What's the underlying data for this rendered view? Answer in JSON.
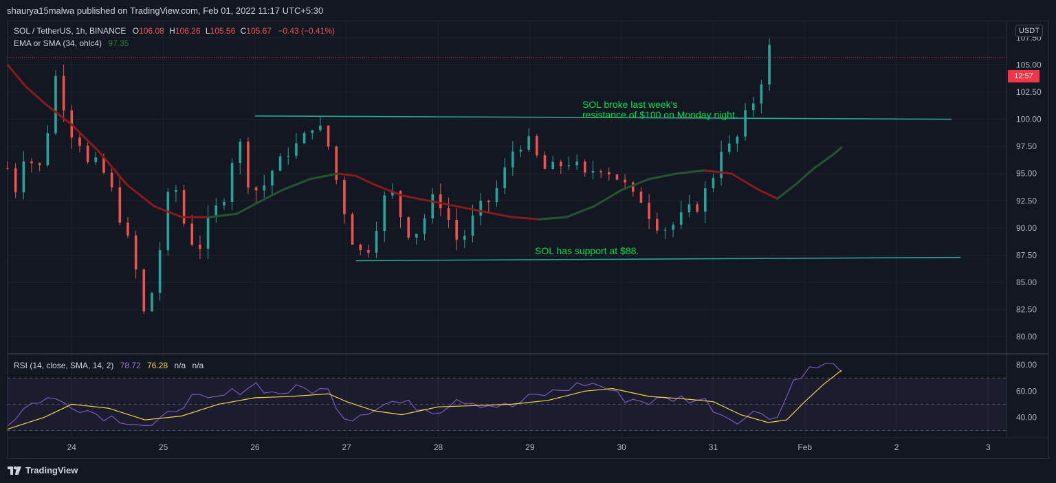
{
  "header": {
    "text": "shaurya15malwa published on TradingView.com, Feb 01, 2022 11:17 UTC+5:30"
  },
  "legend": {
    "symbol": "SOL / TetherUS, 1h, BINANCE",
    "o_label": "O",
    "o_val": "106.08",
    "h_label": "H",
    "h_val": "106.26",
    "l_label": "L",
    "l_val": "105.56",
    "c_label": "C",
    "c_val": "105.67",
    "change": "−0.43 (−0.41%)",
    "ema_label": "EMA or SMA (34, ohlc4)",
    "ema_val": "97.35",
    "rsi_label": "RSI (14, close, SMA, 14, 2)",
    "rsi_val": "78.72",
    "rsi_sma_val": "76.28",
    "rsi_na1": "n/a",
    "rsi_na2": "n/a"
  },
  "price_axis": {
    "currency": "USDT",
    "last_tag": "12:57"
  },
  "annotations": {
    "resistance": [
      "SOL broke last week's",
      "resistance of $100 on Monday night."
    ],
    "support": "SOL has support at $88."
  },
  "footer": {
    "brand": "TradingView"
  },
  "colors": {
    "up": "#26a69a",
    "down": "#ef5350",
    "ema_up": "#1e5631",
    "ema_down": "#8b1a1a",
    "rsi": "#7e57c2",
    "rsi_sma": "#f5d547",
    "level_line": "#26a69a",
    "annotation": "#00e04b"
  },
  "chart_data": [
    {
      "type": "candlestick",
      "ylim": [
        78.5,
        109
      ],
      "yticks": [
        "107.50",
        "105.00",
        "102.50",
        "100.00",
        "97.50",
        "95.00",
        "92.50",
        "90.00",
        "87.50",
        "85.00",
        "82.50",
        "80.00"
      ],
      "ytick_values": [
        107.5,
        105,
        102.5,
        100,
        97.5,
        95,
        92.5,
        90,
        87.5,
        85,
        82.5,
        80
      ],
      "xticks": [
        "24",
        "25",
        "26",
        "27",
        "28",
        "29",
        "30",
        "31",
        "Feb",
        "2",
        "3"
      ],
      "x_range_days": [
        -0.7,
        10.2
      ],
      "xtick_days": [
        0,
        1,
        2,
        3,
        4,
        5,
        6,
        7,
        8,
        9,
        10
      ],
      "close_path_days": [
        -0.7,
        -0.6,
        -0.5,
        -0.4,
        -0.3,
        -0.2,
        -0.1,
        0,
        0.1,
        0.2,
        0.3,
        0.4,
        0.5,
        0.6,
        0.7,
        0.8,
        0.9,
        1,
        1.1,
        1.2,
        1.3,
        1.4,
        1.5,
        1.6,
        1.7,
        1.8,
        1.9,
        2,
        2.1,
        2.2,
        2.3,
        2.4,
        2.5,
        2.6,
        2.7,
        2.8,
        2.9,
        3,
        3.1,
        3.2,
        3.3,
        3.4,
        3.5,
        3.6,
        3.7,
        3.8,
        3.9,
        4,
        4.1,
        4.2,
        4.3,
        4.4,
        4.5,
        4.6,
        4.7,
        4.8,
        4.9,
        5,
        5.1,
        5.2,
        5.3,
        5.4,
        5.5,
        5.6,
        5.7,
        5.8,
        5.9,
        6,
        6.1,
        6.2,
        6.3,
        6.4,
        6.5,
        6.6,
        6.7,
        6.8,
        6.9,
        7,
        7.1,
        7.2,
        7.3,
        7.4,
        7.5,
        7.6,
        7.7,
        7.8,
        7.9,
        8,
        8.1,
        8.2,
        8.3,
        8.4
      ],
      "close_path": [
        95.5,
        93.5,
        98,
        95,
        96,
        104.5,
        102,
        99,
        98,
        95,
        96,
        94,
        92,
        89,
        86,
        81.5,
        85,
        90,
        95,
        91,
        89,
        88.5,
        90.5,
        92,
        94,
        99,
        95,
        93.5,
        94,
        95.5,
        96,
        98,
        97,
        100,
        99,
        97.5,
        94,
        91,
        88,
        87.5,
        90,
        92.5,
        93,
        91,
        89.5,
        90,
        92,
        93,
        91,
        89,
        89.5,
        91,
        92,
        93,
        94.5,
        97,
        98,
        97.5,
        96,
        95,
        95.5,
        96.5,
        95.5,
        94.5,
        95.5,
        96,
        95,
        94.5,
        92.5,
        93,
        91.5,
        90.5,
        90,
        90.5,
        91,
        92,
        93,
        95,
        98,
        97,
        99,
        101,
        103,
        106.5,
        105.7
      ],
      "ema_days": [
        -0.7,
        -0.5,
        -0.3,
        0,
        0.3,
        0.6,
        0.9,
        1.2,
        1.5,
        1.8,
        2,
        2.3,
        2.6,
        2.9,
        3.1,
        3.3,
        3.6,
        3.9,
        4.2,
        4.5,
        4.8,
        5.1,
        5.4,
        5.7,
        6,
        6.3,
        6.6,
        6.9,
        7.2,
        7.5,
        7.7,
        7.9,
        8.1,
        8.3,
        8.4
      ],
      "ema_values": [
        105,
        103,
        101.5,
        99.5,
        97,
        94,
        92,
        91,
        91,
        91.3,
        92.2,
        93.5,
        94.5,
        95,
        94.8,
        94,
        93,
        92.5,
        92,
        91.5,
        91,
        90.8,
        91,
        92,
        93.5,
        94.5,
        95,
        95.3,
        95,
        93.5,
        92.7,
        94,
        95.5,
        96.7,
        97.4
      ],
      "resistance_line": {
        "from_day": 2.0,
        "to_day": 9.6,
        "from_price": 100.3,
        "to_price": 100.0
      },
      "support_line": {
        "from_day": 3.1,
        "to_day": 9.7,
        "from_price": 87.0,
        "to_price": 87.3
      }
    },
    {
      "type": "line",
      "title": "RSI",
      "ylim": [
        25,
        88
      ],
      "yticks": [
        "80.00",
        "60.00",
        "40.00"
      ],
      "ytick_values": [
        80,
        60,
        40
      ],
      "bands": [
        70,
        50,
        30
      ],
      "series": [
        {
          "name": "RSI",
          "x_days": [
            -0.7,
            -0.5,
            -0.3,
            0,
            0.3,
            0.6,
            0.9,
            1.1,
            1.3,
            1.5,
            1.8,
            2,
            2.2,
            2.5,
            2.8,
            3,
            3.2,
            3.5,
            3.8,
            4,
            4.2,
            4.5,
            4.8,
            5,
            5.3,
            5.6,
            5.8,
            6,
            6.3,
            6.6,
            6.9,
            7.1,
            7.3,
            7.5,
            7.7,
            7.9,
            8,
            8.2,
            8.4
          ],
          "values": [
            35,
            48,
            55,
            50,
            42,
            38,
            32,
            45,
            55,
            52,
            60,
            66,
            58,
            62,
            60,
            38,
            45,
            52,
            48,
            45,
            55,
            50,
            48,
            55,
            60,
            66,
            64,
            55,
            52,
            55,
            53,
            42,
            38,
            45,
            40,
            72,
            75,
            80,
            78
          ]
        },
        {
          "name": "SMA",
          "x_days": [
            -0.7,
            -0.3,
            0,
            0.4,
            0.8,
            1.2,
            1.6,
            2,
            2.4,
            2.8,
            3,
            3.3,
            3.6,
            4,
            4.4,
            4.8,
            5.2,
            5.6,
            5.9,
            6.3,
            6.7,
            7,
            7.3,
            7.6,
            7.8,
            8,
            8.2,
            8.4
          ],
          "values": [
            31,
            40,
            50,
            47,
            38,
            41,
            50,
            55,
            56,
            58,
            52,
            45,
            42,
            48,
            49,
            50,
            53,
            60,
            62,
            56,
            54,
            52,
            42,
            36,
            38,
            52,
            65,
            76
          ]
        }
      ]
    }
  ]
}
